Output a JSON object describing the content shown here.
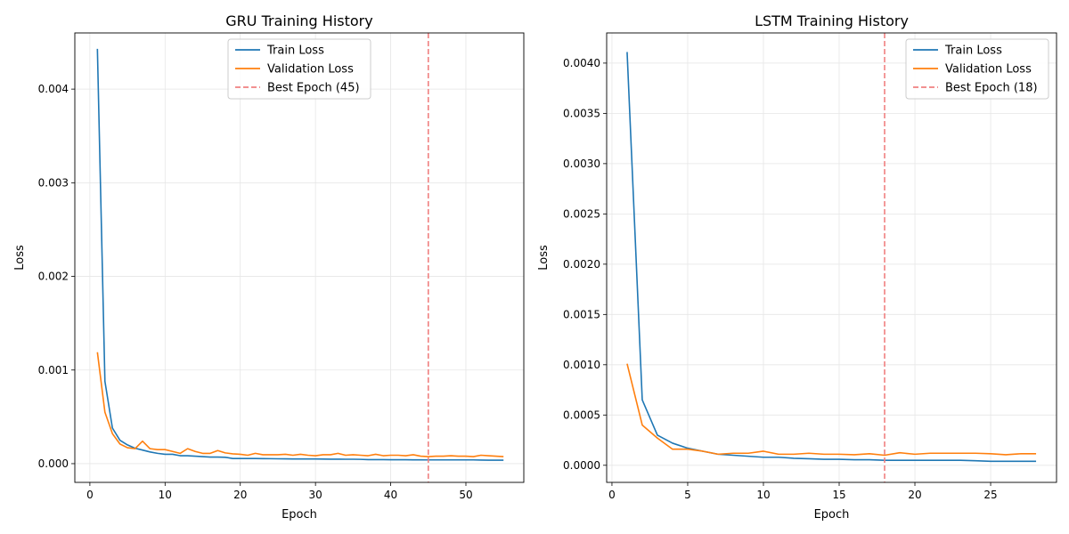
{
  "chart_data": [
    {
      "type": "line",
      "title": "GRU Training History",
      "xlabel": "Epoch",
      "ylabel": "Loss",
      "xlim": [
        -2,
        57.7
      ],
      "ylim": [
        -0.0002,
        0.0046
      ],
      "xticks": [
        0,
        10,
        20,
        30,
        40,
        50
      ],
      "yticks": [
        0,
        0.001,
        0.002,
        0.003,
        0.004
      ],
      "ytick_labels": [
        "0.000",
        "0.001",
        "0.002",
        "0.003",
        "0.004"
      ],
      "grid": true,
      "legend_position": "top-center",
      "series": [
        {
          "name": "Train Loss",
          "color": "#1f77b4",
          "x": [
            1,
            2,
            3,
            4,
            5,
            6,
            7,
            8,
            9,
            10,
            11,
            12,
            13,
            14,
            15,
            16,
            17,
            18,
            19,
            20,
            21,
            22,
            23,
            24,
            25,
            26,
            27,
            28,
            29,
            30,
            31,
            32,
            33,
            34,
            35,
            36,
            37,
            38,
            39,
            40,
            41,
            42,
            43,
            44,
            45,
            46,
            47,
            48,
            49,
            50,
            51,
            52,
            53,
            54,
            55
          ],
          "y": [
            0.00443,
            0.00088,
            0.00038,
            0.00025,
            0.0002,
            0.000165,
            0.000145,
            0.000125,
            0.00011,
            0.0001,
            0.0001,
            8.5e-05,
            8.5e-05,
            8e-05,
            7.5e-05,
            7e-05,
            7e-05,
            6.8e-05,
            5.5e-05,
            5.5e-05,
            5.5e-05,
            5.5e-05,
            5.4e-05,
            5.3e-05,
            5.2e-05,
            5.1e-05,
            5e-05,
            5e-05,
            5e-05,
            5e-05,
            4.9e-05,
            4.8e-05,
            4.8e-05,
            4.7e-05,
            4.7e-05,
            4.6e-05,
            4.3e-05,
            4.3e-05,
            4.3e-05,
            4.2e-05,
            4.2e-05,
            4.2e-05,
            4.1e-05,
            4.1e-05,
            4e-05,
            4e-05,
            4e-05,
            4e-05,
            4e-05,
            4e-05,
            4e-05,
            3.8e-05,
            3.7e-05,
            3.7e-05,
            3.7e-05
          ]
        },
        {
          "name": "Validation Loss",
          "color": "#ff7f0e",
          "x": [
            1,
            2,
            3,
            4,
            5,
            6,
            7,
            8,
            9,
            10,
            11,
            12,
            13,
            14,
            15,
            16,
            17,
            18,
            19,
            20,
            21,
            22,
            23,
            24,
            25,
            26,
            27,
            28,
            29,
            30,
            31,
            32,
            33,
            34,
            35,
            36,
            37,
            38,
            39,
            40,
            41,
            42,
            43,
            44,
            45,
            46,
            47,
            48,
            49,
            50,
            51,
            52,
            53,
            54,
            55
          ],
          "y": [
            0.00119,
            0.00055,
            0.00032,
            0.00021,
            0.00017,
            0.00016,
            0.00024,
            0.00016,
            0.00015,
            0.00015,
            0.00013,
            0.00011,
            0.00016,
            0.00013,
            0.00011,
            0.00011,
            0.00014,
            0.000115,
            0.000105,
            0.0001,
            9e-05,
            0.00011,
            9.5e-05,
            9.5e-05,
            9.5e-05,
            0.0001,
            9e-05,
            0.0001,
            9e-05,
            8.5e-05,
            9.5e-05,
            9.5e-05,
            0.00011,
            9e-05,
            9.5e-05,
            9e-05,
            8.5e-05,
            0.0001,
            8.5e-05,
            9e-05,
            9e-05,
            8.5e-05,
            9.5e-05,
            8e-05,
            7.5e-05,
            8e-05,
            8e-05,
            8.5e-05,
            8e-05,
            8e-05,
            7.5e-05,
            9e-05,
            8.5e-05,
            8e-05,
            7.5e-05
          ]
        },
        {
          "name": "Best Epoch (45)",
          "color": "#f08080",
          "style": "dashed",
          "vline_x": 45
        }
      ]
    },
    {
      "type": "line",
      "title": "LSTM Training History",
      "xlabel": "Epoch",
      "ylabel": "Loss",
      "xlim": [
        -0.35,
        29.35
      ],
      "ylim": [
        -0.00017,
        0.0043
      ],
      "xticks": [
        0,
        5,
        10,
        15,
        20,
        25
      ],
      "yticks": [
        0,
        0.0005,
        0.001,
        0.0015,
        0.002,
        0.0025,
        0.003,
        0.0035,
        0.004
      ],
      "ytick_labels": [
        "0.0000",
        "0.0005",
        "0.0010",
        "0.0015",
        "0.0020",
        "0.0025",
        "0.0030",
        "0.0035",
        "0.0040"
      ],
      "grid": true,
      "legend_position": "top-right",
      "series": [
        {
          "name": "Train Loss",
          "color": "#1f77b4",
          "x": [
            1,
            2,
            3,
            4,
            5,
            6,
            7,
            8,
            9,
            10,
            11,
            12,
            13,
            14,
            15,
            16,
            17,
            18,
            19,
            20,
            21,
            22,
            23,
            24,
            25,
            26,
            27,
            28
          ],
          "y": [
            0.00411,
            0.00065,
            0.0003,
            0.00022,
            0.00017,
            0.00014,
            0.00011,
            0.0001,
            9e-05,
            8e-05,
            8e-05,
            7e-05,
            6.5e-05,
            6e-05,
            6e-05,
            5.5e-05,
            5.5e-05,
            5e-05,
            5e-05,
            5e-05,
            5e-05,
            5e-05,
            5e-05,
            4.5e-05,
            4e-05,
            4e-05,
            4e-05,
            4e-05
          ]
        },
        {
          "name": "Validation Loss",
          "color": "#ff7f0e",
          "x": [
            1,
            2,
            3,
            4,
            5,
            6,
            7,
            8,
            9,
            10,
            11,
            12,
            13,
            14,
            15,
            16,
            17,
            18,
            19,
            20,
            21,
            22,
            23,
            24,
            25,
            26,
            27,
            28
          ],
          "y": [
            0.00101,
            0.0004,
            0.00027,
            0.00016,
            0.00016,
            0.00014,
            0.00011,
            0.00012,
            0.00012,
            0.00014,
            0.00011,
            0.00011,
            0.00012,
            0.00011,
            0.00011,
            0.000105,
            0.000115,
            0.0001,
            0.000125,
            0.00011,
            0.00012,
            0.00012,
            0.00012,
            0.00012,
            0.000115,
            0.000105,
            0.000115,
            0.000115
          ]
        },
        {
          "name": "Best Epoch (18)",
          "color": "#f08080",
          "style": "dashed",
          "vline_x": 18
        }
      ]
    }
  ]
}
